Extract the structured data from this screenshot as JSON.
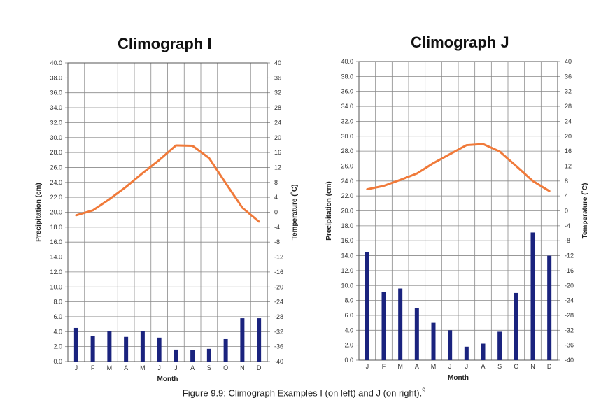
{
  "caption": {
    "text": "Figure 9.9: Climograph Examples I (on left) and J (on right).",
    "note": "9"
  },
  "chart_data": [
    {
      "type": "bar+line",
      "title": "Climograph I",
      "xlabel": "Month",
      "ylabel_left": "Precipitation (cm)",
      "ylabel_right": "Temperature (˚C)",
      "ylim_left": [
        0,
        40
      ],
      "ylim_right": [
        -40,
        40
      ],
      "left_ticks": [
        "0.0",
        "2.0",
        "4.0",
        "6.0",
        "8.0",
        "10.0",
        "12.0",
        "14.0",
        "16.0",
        "18.0",
        "20.0",
        "22.0",
        "24.0",
        "26.0",
        "28.0",
        "30.0",
        "32.0",
        "34.0",
        "36.0",
        "38.0",
        "40.0"
      ],
      "right_ticks": [
        "-40",
        "-36",
        "-32",
        "-28",
        "-24",
        "-20",
        "-16",
        "-12",
        "-8",
        "-4",
        "0",
        "4",
        "8",
        "12",
        "16",
        "20",
        "24",
        "28",
        "32",
        "36",
        "40"
      ],
      "categories": [
        "J",
        "F",
        "M",
        "A",
        "M",
        "J",
        "J",
        "A",
        "S",
        "O",
        "N",
        "D"
      ],
      "precipitation": [
        4.5,
        3.4,
        4.1,
        3.3,
        4.1,
        3.2,
        1.6,
        1.5,
        1.7,
        3.0,
        5.8,
        5.8
      ],
      "temperature": [
        -0.8,
        0.5,
        3.5,
        6.8,
        10.5,
        14.0,
        17.9,
        17.8,
        14.5,
        7.8,
        1.2,
        -2.5
      ],
      "colors": {
        "bar": "#1a237e",
        "line": "#f07a3a"
      },
      "grid": true
    },
    {
      "type": "bar+line",
      "title": "Climograph J",
      "xlabel": "Month",
      "ylabel_left": "Precipitation (cm)",
      "ylabel_right": "Temperature (˚C)",
      "ylim_left": [
        0,
        40
      ],
      "ylim_right": [
        -40,
        40
      ],
      "left_ticks": [
        "0.0",
        "2.0",
        "4.0",
        "6.0",
        "8.0",
        "10.0",
        "12.0",
        "14.0",
        "16.0",
        "18.0",
        "20.0",
        "22.0",
        "24.0",
        "26.0",
        "28.0",
        "30.0",
        "32.0",
        "34.0",
        "36.0",
        "38.0",
        "40.0"
      ],
      "right_ticks": [
        "-40",
        "-36",
        "-32",
        "-28",
        "-24",
        "-20",
        "-16",
        "-12",
        "-8",
        "-4",
        "0",
        "4",
        "8",
        "12",
        "16",
        "20",
        "24",
        "28",
        "32",
        "36",
        "40"
      ],
      "categories": [
        "J",
        "F",
        "M",
        "A",
        "M",
        "J",
        "J",
        "A",
        "S",
        "O",
        "N",
        "D"
      ],
      "precipitation": [
        14.5,
        9.1,
        9.6,
        7.0,
        5.0,
        4.0,
        1.8,
        2.2,
        3.8,
        9.0,
        17.1,
        14.0
      ],
      "temperature": [
        5.8,
        6.7,
        8.3,
        10.0,
        12.8,
        15.2,
        17.6,
        17.9,
        15.9,
        12.0,
        8.0,
        5.3
      ],
      "colors": {
        "bar": "#1a237e",
        "line": "#f07a3a"
      },
      "grid": true
    }
  ]
}
